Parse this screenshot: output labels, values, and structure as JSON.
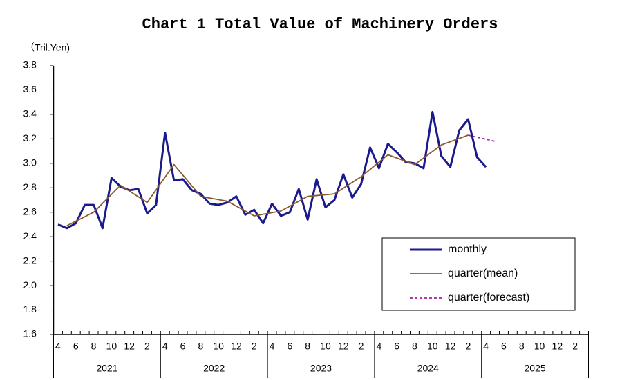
{
  "chart_data": {
    "type": "line",
    "title": "Chart 1 Total Value of Machinery Orders",
    "y_label": "（Tril.Yen)",
    "ylim": [
      1.6,
      3.8
    ],
    "yticks": [
      {
        "value": 1.6,
        "label": "1.6"
      },
      {
        "value": 1.8,
        "label": "1.8"
      },
      {
        "value": 2.0,
        "label": "2.0"
      },
      {
        "value": 2.2,
        "label": "2.2"
      },
      {
        "value": 2.4,
        "label": "2.4"
      },
      {
        "value": 2.6,
        "label": "2.6"
      },
      {
        "value": 2.8,
        "label": "2.8"
      },
      {
        "value": 3.0,
        "label": "3.0"
      },
      {
        "value": 3.2,
        "label": "3.2"
      },
      {
        "value": 3.4,
        "label": "3.4"
      },
      {
        "value": 3.6,
        "label": "3.6"
      },
      {
        "value": 3.8,
        "label": "3.8"
      }
    ],
    "xlim": [
      "2021-04",
      "2026-03"
    ],
    "xticks": [
      {
        "value": "2021-04",
        "label": "4"
      },
      {
        "value": "2021-06",
        "label": "6"
      },
      {
        "value": "2021-08",
        "label": "8"
      },
      {
        "value": "2021-10",
        "label": "10"
      },
      {
        "value": "2021-12",
        "label": "12"
      },
      {
        "value": "2022-02",
        "label": "2"
      },
      {
        "value": "2022-04",
        "label": "4"
      },
      {
        "value": "2022-06",
        "label": "6"
      },
      {
        "value": "2022-08",
        "label": "8"
      },
      {
        "value": "2022-10",
        "label": "10"
      },
      {
        "value": "2022-12",
        "label": "12"
      },
      {
        "value": "2023-02",
        "label": "2"
      },
      {
        "value": "2023-04",
        "label": "4"
      },
      {
        "value": "2023-06",
        "label": "6"
      },
      {
        "value": "2023-08",
        "label": "8"
      },
      {
        "value": "2023-10",
        "label": "10"
      },
      {
        "value": "2023-12",
        "label": "12"
      },
      {
        "value": "2024-02",
        "label": "2"
      },
      {
        "value": "2024-04",
        "label": "4"
      },
      {
        "value": "2024-06",
        "label": "6"
      },
      {
        "value": "2024-08",
        "label": "8"
      },
      {
        "value": "2024-10",
        "label": "10"
      },
      {
        "value": "2024-12",
        "label": "12"
      },
      {
        "value": "2025-02",
        "label": "2"
      },
      {
        "value": "2025-04",
        "label": "4"
      },
      {
        "value": "2025-06",
        "label": "6"
      },
      {
        "value": "2025-08",
        "label": "8"
      },
      {
        "value": "2025-10",
        "label": "10"
      },
      {
        "value": "2025-12",
        "label": "12"
      },
      {
        "value": "2026-02",
        "label": "2"
      }
    ],
    "year_labels": [
      "2021",
      "2022",
      "2023",
      "2024",
      "2025"
    ],
    "legend_position": "lower right",
    "series": [
      {
        "name": "monthly",
        "color": "#1a1a8c",
        "style": "solid",
        "x": [
          "2021-04",
          "2021-05",
          "2021-06",
          "2021-07",
          "2021-08",
          "2021-09",
          "2021-10",
          "2021-11",
          "2021-12",
          "2022-01",
          "2022-02",
          "2022-03",
          "2022-04",
          "2022-05",
          "2022-06",
          "2022-07",
          "2022-08",
          "2022-09",
          "2022-10",
          "2022-11",
          "2022-12",
          "2023-01",
          "2023-02",
          "2023-03",
          "2023-04",
          "2023-05",
          "2023-06",
          "2023-07",
          "2023-08",
          "2023-09",
          "2023-10",
          "2023-11",
          "2023-12",
          "2024-01",
          "2024-02",
          "2024-03",
          "2024-04",
          "2024-05",
          "2024-06",
          "2024-07",
          "2024-08",
          "2024-09",
          "2024-10",
          "2024-11",
          "2024-12",
          "2025-01",
          "2025-02",
          "2025-03",
          "2025-04"
        ],
        "values": [
          2.5,
          2.47,
          2.51,
          2.66,
          2.66,
          2.47,
          2.88,
          2.81,
          2.78,
          2.79,
          2.59,
          2.66,
          3.25,
          2.86,
          2.87,
          2.78,
          2.75,
          2.67,
          2.66,
          2.68,
          2.73,
          2.58,
          2.62,
          2.51,
          2.67,
          2.57,
          2.6,
          2.79,
          2.54,
          2.87,
          2.64,
          2.7,
          2.91,
          2.72,
          2.83,
          3.13,
          2.96,
          3.16,
          3.09,
          3.01,
          3.0,
          2.96,
          3.42,
          3.06,
          2.97,
          3.27,
          3.36,
          3.05,
          2.97
        ]
      },
      {
        "name": "quarter(mean)",
        "color": "#8b5a2b",
        "style": "solid",
        "x": [
          "2021-05",
          "2021-08",
          "2021-11",
          "2022-02",
          "2022-05",
          "2022-08",
          "2022-11",
          "2023-02",
          "2023-05",
          "2023-08",
          "2023-11",
          "2024-02",
          "2024-05",
          "2024-08",
          "2024-11",
          "2025-02"
        ],
        "values": [
          2.49,
          2.6,
          2.82,
          2.68,
          2.99,
          2.73,
          2.69,
          2.57,
          2.61,
          2.73,
          2.75,
          2.89,
          3.07,
          2.99,
          3.15,
          3.23
        ]
      },
      {
        "name": "quarter(forecast)",
        "color": "#a020a0",
        "style": "dashed",
        "x": [
          "2025-02",
          "2025-05"
        ],
        "values": [
          3.23,
          3.18
        ]
      }
    ]
  }
}
